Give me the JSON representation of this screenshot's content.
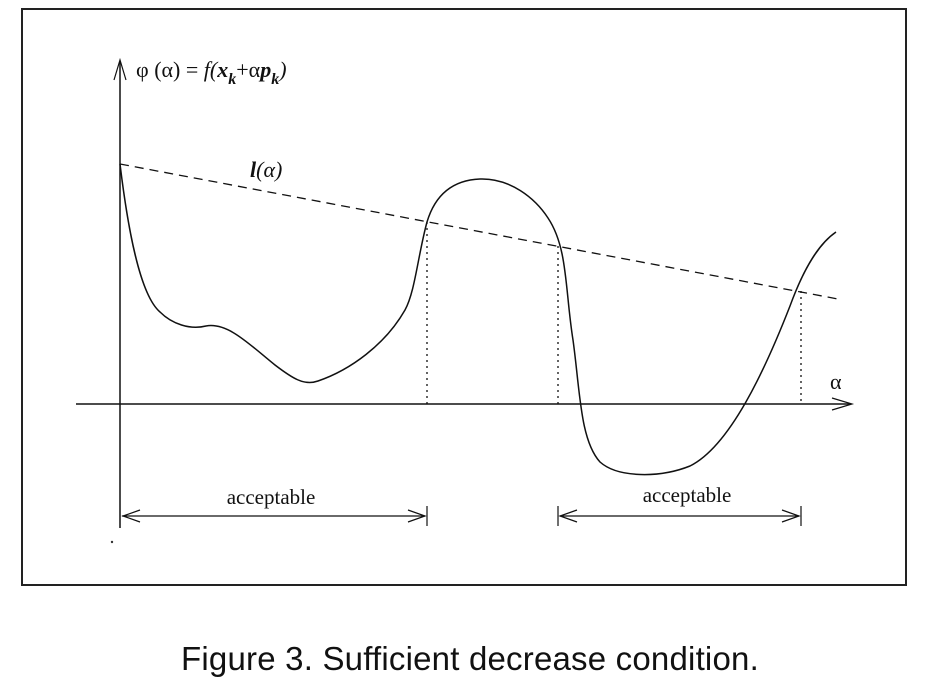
{
  "diagram": {
    "phi_label": {
      "prefix": "φ (α) = ",
      "f": "f",
      "open": "(",
      "x": "x",
      "k1": "k",
      "plus_alpha": "+α",
      "p": "p",
      "k2": "k",
      "close": ")"
    },
    "line_label": {
      "l": "l",
      "rest": "(α)"
    },
    "alpha_axis_label": "α",
    "acceptable_left": "acceptable",
    "acceptable_right": "acceptable"
  },
  "caption": "Figure 3. Sufficient decrease condition."
}
